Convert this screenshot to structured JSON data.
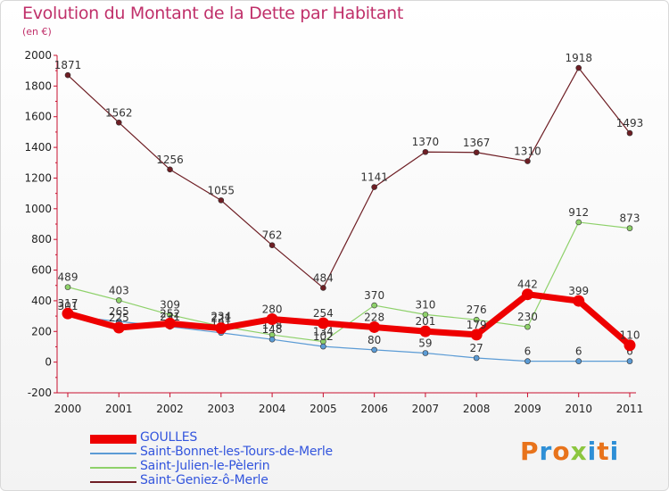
{
  "header": {
    "title": "Evolution du Montant de la Dette par Habitant",
    "subtitle": "(en €)"
  },
  "logo": {
    "text": "Proxiti",
    "colors": [
      "#e8731b",
      "#2e8fd6",
      "#e8731b",
      "#8cc63f",
      "#2e8fd6",
      "#e8731b",
      "#2e8fd6"
    ]
  },
  "chart_data": {
    "type": "line",
    "categories": [
      "2000",
      "2001",
      "2002",
      "2003",
      "2004",
      "2005",
      "2006",
      "2007",
      "2008",
      "2009",
      "2010",
      "2011"
    ],
    "ylim": [
      -200,
      2000
    ],
    "yticks": [
      -200,
      0,
      200,
      400,
      600,
      800,
      1000,
      1200,
      1400,
      1600,
      1800,
      2000
    ],
    "grid": false,
    "legend_position": "bottom-left",
    "series": [
      {
        "name": "Saint-Geniez-ô-Merle",
        "color": "#6e1e24",
        "width": 1.2,
        "marker": 6,
        "values": [
          1871,
          1562,
          1256,
          1055,
          762,
          484,
          1141,
          1370,
          1367,
          1310,
          1918,
          1493
        ]
      },
      {
        "name": "Saint-Julien-le-Pèlerin",
        "color": "#8ed16a",
        "width": 1.2,
        "marker": 6,
        "values": [
          489,
          403,
          309,
          234,
          178,
          134,
          370,
          310,
          276,
          230,
          912,
          873
        ]
      },
      {
        "name": "Saint-Bonnet-les-Tours-de-Merle",
        "color": "#5b9bd5",
        "width": 1.2,
        "marker": 6,
        "values": [
          301,
          265,
          231,
          191,
          148,
          102,
          80,
          59,
          27,
          6,
          6,
          6
        ]
      },
      {
        "name": "GOULLES",
        "color": "#ee0000",
        "width": 7,
        "marker": 13,
        "values": [
          317,
          225,
          252,
          221,
          280,
          254,
          228,
          201,
          179,
          442,
          399,
          110
        ]
      }
    ],
    "legend_order": [
      "GOULLES",
      "Saint-Bonnet-les-Tours-de-Merle",
      "Saint-Julien-le-Pèlerin",
      "Saint-Geniez-ô-Merle"
    ]
  }
}
